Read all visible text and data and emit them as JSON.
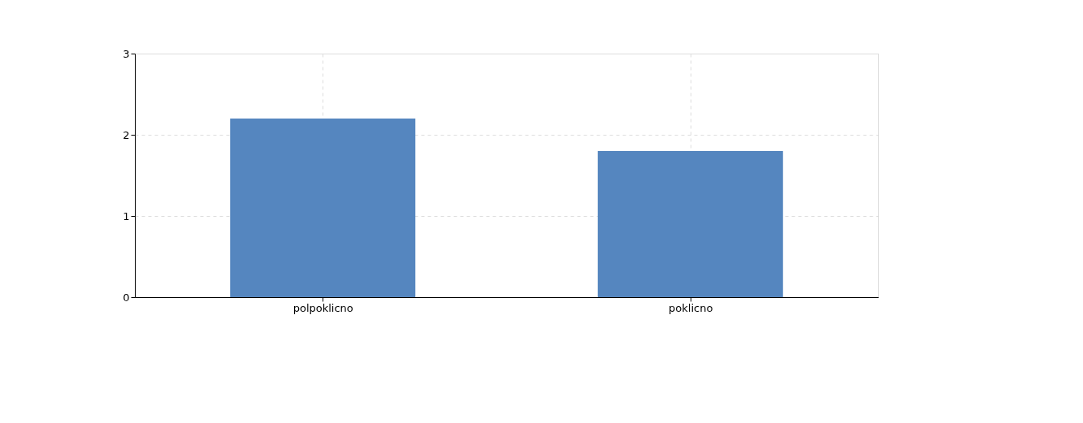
{
  "chart_data": {
    "type": "bar",
    "categories": [
      "polpoklicno",
      "poklicno"
    ],
    "series": [
      {
        "color": "#5586bf",
        "values": [
          2.2,
          1.8
        ]
      }
    ],
    "ylim": [
      0,
      3
    ],
    "yticks": [
      0,
      1,
      2,
      3
    ],
    "grid": true
  }
}
